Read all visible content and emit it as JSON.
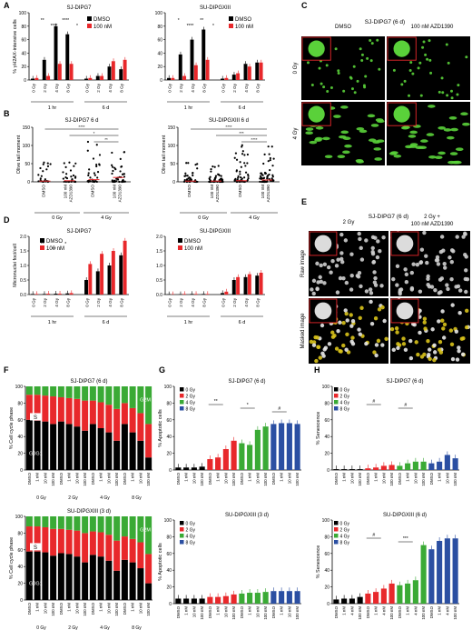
{
  "panels": {
    "A": "A",
    "B": "B",
    "C": "C",
    "D": "D",
    "E": "E",
    "F": "F",
    "G": "G",
    "H": "H"
  },
  "colors": {
    "black": "#000000",
    "red": "#e8282b",
    "green": "#3aaa35",
    "blue": "#2b4fa2",
    "white": "#ffffff"
  },
  "legend": {
    "dmso": "DMSO",
    "nm100": "100 nM",
    "gy0": "0 Gy",
    "gy2": "2 Gy",
    "gy4": "4 Gy",
    "gy8": "8 Gy"
  },
  "chart_data": [
    {
      "panel": "A",
      "type": "bar",
      "title": "SJ-DIPG7",
      "ylabel": "% γH2AX-intensive cells",
      "ylim": [
        0,
        100
      ],
      "yticks": [
        "0",
        "20",
        "40",
        "60",
        "80",
        "100"
      ],
      "categories": [
        "0 Gy",
        "2 Gy",
        "4 Gy",
        "8 Gy",
        "0 Gy",
        "2 Gy",
        "4 Gy",
        "8 Gy"
      ],
      "groups": [
        "1 hr",
        "6 d"
      ],
      "series": [
        {
          "name": "DMSO",
          "values": [
            2,
            30,
            80,
            68,
            2,
            6,
            20,
            16
          ]
        },
        {
          "name": "100 nM",
          "values": [
            3,
            6,
            24,
            24,
            3,
            6,
            28,
            30
          ]
        }
      ],
      "sig": [
        "**",
        "****",
        "****",
        "*"
      ]
    },
    {
      "panel": "A",
      "type": "bar",
      "title": "SU-DIPGXIII",
      "ylabel": "",
      "ylim": [
        0,
        100
      ],
      "yticks": [
        "0",
        "20",
        "40",
        "60",
        "80",
        "100"
      ],
      "categories": [
        "0 Gy",
        "2 Gy",
        "4 Gy",
        "8 Gy",
        "0 Gy",
        "2 Gy",
        "4 Gy",
        "8 Gy"
      ],
      "groups": [
        "1 hr",
        "6 d"
      ],
      "series": [
        {
          "name": "DMSO",
          "values": [
            3,
            38,
            60,
            75,
            2,
            8,
            24,
            26
          ]
        },
        {
          "name": "100 nM",
          "values": [
            3,
            6,
            22,
            30,
            3,
            10,
            20,
            26
          ]
        }
      ],
      "sig": [
        "*",
        "****",
        "**",
        "*"
      ]
    },
    {
      "panel": "B",
      "type": "scatter",
      "title": "SJ-DIPG7 6 d",
      "ylabel": "Olive tail moment",
      "ylim": [
        0,
        150
      ],
      "yticks": [
        "0",
        "50",
        "100",
        "150"
      ],
      "categories": [
        "DMSO",
        "100 nM AZD1390",
        "DMSO",
        "100 nM AZD1390"
      ],
      "groups": [
        "0 Gy",
        "4 Gy"
      ],
      "medians": [
        2,
        3,
        6,
        12
      ],
      "sig": [
        "****",
        "*",
        "**"
      ]
    },
    {
      "panel": "B",
      "type": "scatter",
      "title": "SU-DIPGXIII 6 d",
      "ylabel": "Olive tail moment",
      "ylim": [
        0,
        150
      ],
      "yticks": [
        "0",
        "50",
        "100",
        "150"
      ],
      "categories": [
        "DMSO",
        "100 nM AZD1390",
        "DMSO",
        "100 nM AZD1390"
      ],
      "groups": [
        "0 Gy",
        "4 Gy"
      ],
      "medians": [
        2,
        2,
        3,
        5
      ],
      "sig": [
        "****",
        "***",
        "****"
      ]
    },
    {
      "panel": "D",
      "type": "bar",
      "title": "SJ-DIPG7",
      "ylabel": "Micronuclei foci/cell",
      "ylim": [
        0,
        2.0
      ],
      "yticks": [
        "0.0",
        "0.5",
        "1.0",
        "1.5",
        "2.0"
      ],
      "categories": [
        "0 Gy",
        "2 Gy",
        "4 Gy",
        "8 Gy",
        "0 Gy",
        "2 Gy",
        "4 Gy",
        "8 Gy"
      ],
      "groups": [
        "1 hr",
        "6 d"
      ],
      "series": [
        {
          "name": "DMSO",
          "values": [
            0.02,
            0.02,
            0.03,
            0.04,
            0.5,
            0.8,
            1.0,
            1.35
          ]
        },
        {
          "name": "100 nM",
          "values": [
            0.02,
            0.03,
            0.03,
            0.05,
            1.05,
            1.4,
            1.5,
            1.85
          ]
        }
      ],
      "sig": [
        "**",
        "**",
        "*"
      ]
    },
    {
      "panel": "D",
      "type": "bar",
      "title": "SU-DIPGXIII",
      "ylabel": "",
      "ylim": [
        0,
        2.0
      ],
      "yticks": [
        "0.0",
        "0.5",
        "1.0",
        "1.5",
        "2.0"
      ],
      "categories": [
        "0 Gy",
        "2 Gy",
        "4 Gy",
        "8 Gy",
        "0 Gy",
        "2 Gy",
        "4 Gy",
        "8 Gy"
      ],
      "groups": [
        "1 hr",
        "6 d"
      ],
      "series": [
        {
          "name": "DMSO",
          "values": [
            0.01,
            0.01,
            0.02,
            0.02,
            0.05,
            0.5,
            0.6,
            0.65
          ]
        },
        {
          "name": "100 nM",
          "values": [
            0.01,
            0.02,
            0.02,
            0.02,
            0.1,
            0.6,
            0.7,
            0.75
          ]
        }
      ],
      "sig": []
    },
    {
      "panel": "F",
      "type": "bar",
      "title": "SJ-DIPG7 (6 d)",
      "ylabel": "% Cell cycle phase",
      "ylim": [
        0,
        100
      ],
      "yticks": [
        "0",
        "20",
        "40",
        "60",
        "80",
        "100"
      ],
      "categories": [
        "DMSO",
        "1 nM",
        "10 nM",
        "100 nM"
      ],
      "groups": [
        "0 Gy",
        "2 Gy",
        "4 Gy",
        "8 Gy"
      ],
      "stack_labels": [
        "G0G1",
        "S",
        "G2M"
      ],
      "g1": [
        60,
        59,
        58,
        55,
        58,
        55,
        52,
        47,
        55,
        50,
        45,
        35,
        55,
        45,
        35,
        15
      ],
      "s": [
        30,
        31,
        31,
        33,
        29,
        31,
        33,
        36,
        28,
        31,
        33,
        38,
        25,
        29,
        33,
        40
      ]
    },
    {
      "panel": "F",
      "type": "bar",
      "title": "SU-DIPGXIII (3 d)",
      "ylabel": "% Cell cycle phase",
      "ylim": [
        0,
        100
      ],
      "yticks": [
        "0",
        "20",
        "40",
        "60",
        "80",
        "100"
      ],
      "categories": [
        "DMSO",
        "1 nM",
        "10 nM",
        "100 nM"
      ],
      "groups": [
        "0 Gy",
        "2 Gy",
        "4 Gy",
        "8 Gy"
      ],
      "stack_labels": [
        "G0G1",
        "S",
        "G2M"
      ],
      "g1": [
        58,
        58,
        57,
        53,
        56,
        55,
        52,
        45,
        54,
        52,
        47,
        35,
        48,
        45,
        38,
        20
      ],
      "s": [
        30,
        30,
        30,
        32,
        29,
        29,
        31,
        35,
        28,
        29,
        31,
        36,
        28,
        28,
        31,
        35
      ]
    },
    {
      "panel": "G",
      "type": "bar",
      "title": "SJ-DIPG7 (6 d)",
      "ylabel": "% Apoptotic cells",
      "ylim": [
        0,
        100
      ],
      "yticks": [
        "0",
        "20",
        "40",
        "60",
        "80",
        "100"
      ],
      "categories": [
        "DMSO",
        "1 nM",
        "10 nM",
        "100 nM"
      ],
      "groups": [
        "0 Gy",
        "2 Gy",
        "4 Gy",
        "8 Gy"
      ],
      "series": [
        {
          "name": "0 Gy",
          "values": [
            3,
            3,
            3,
            4
          ]
        },
        {
          "name": "2 Gy",
          "values": [
            13,
            15,
            25,
            35
          ]
        },
        {
          "name": "4 Gy",
          "values": [
            32,
            30,
            48,
            52
          ]
        },
        {
          "name": "8 Gy",
          "values": [
            55,
            56,
            56,
            55
          ]
        }
      ],
      "sig": [
        "**",
        "*",
        "#"
      ]
    },
    {
      "panel": "G",
      "type": "bar",
      "title": "SU-DIPGXIII (3 d)",
      "ylabel": "% Apoptotic cells",
      "ylim": [
        0,
        100
      ],
      "yticks": [
        "0",
        "20",
        "40",
        "60",
        "80",
        "100"
      ],
      "categories": [
        "DMSO",
        "1 nM",
        "10 nM",
        "100 nM"
      ],
      "groups": [
        "0 Gy",
        "2 Gy",
        "4 Gy",
        "8 Gy"
      ],
      "series": [
        {
          "name": "0 Gy",
          "values": [
            6,
            6,
            6,
            6
          ]
        },
        {
          "name": "2 Gy",
          "values": [
            8,
            8,
            9,
            11
          ]
        },
        {
          "name": "4 Gy",
          "values": [
            12,
            13,
            13,
            14
          ]
        },
        {
          "name": "8 Gy",
          "values": [
            15,
            15,
            15,
            15
          ]
        }
      ],
      "sig": []
    },
    {
      "panel": "H",
      "type": "bar",
      "title": "SJ-DIPG7 (6 d)",
      "ylabel": "% Senescence",
      "ylim": [
        0,
        100
      ],
      "yticks": [
        "0",
        "20",
        "40",
        "60",
        "80",
        "100"
      ],
      "categories": [
        "DMSO",
        "1 nM",
        "10 nM",
        "100 nM"
      ],
      "groups": [
        "0 Gy",
        "2 Gy",
        "4 Gy",
        "8 Gy"
      ],
      "series": [
        {
          "name": "0 Gy",
          "values": [
            1,
            1,
            1,
            1
          ]
        },
        {
          "name": "2 Gy",
          "values": [
            2,
            3,
            5,
            6
          ]
        },
        {
          "name": "4 Gy",
          "values": [
            5,
            8,
            10,
            10
          ]
        },
        {
          "name": "8 Gy",
          "values": [
            8,
            10,
            18,
            14
          ]
        }
      ],
      "sig": [
        "#",
        "#"
      ]
    },
    {
      "panel": "H",
      "type": "bar",
      "title": "SU-DIPGXIII (6 d)",
      "ylabel": "% Senescence",
      "ylim": [
        0,
        100
      ],
      "yticks": [
        "0",
        "20",
        "40",
        "60",
        "80",
        "100"
      ],
      "categories": [
        "DMSO",
        "1 nM",
        "4 nM",
        "100 nM"
      ],
      "groups": [
        "0 Gy",
        "2 Gy",
        "4 Gy",
        "8 Gy"
      ],
      "series": [
        {
          "name": "0 Gy",
          "values": [
            5,
            6,
            6,
            8
          ]
        },
        {
          "name": "2 Gy",
          "values": [
            12,
            14,
            18,
            24
          ]
        },
        {
          "name": "4 Gy",
          "values": [
            22,
            24,
            28,
            70
          ]
        },
        {
          "name": "8 Gy",
          "values": [
            65,
            75,
            78,
            78
          ]
        }
      ],
      "sig": [
        "#",
        "***"
      ]
    }
  ],
  "images": {
    "C": {
      "title": "SJ-DIPG7 (6 d)",
      "cols": [
        "DMSO",
        "100 nM AZD1390"
      ],
      "rows": [
        "0 Gy",
        "4 Gy"
      ]
    },
    "E": {
      "title": "SJ-DIPG7 (6 d)",
      "cols": [
        "2 Gy",
        "2 Gy +",
        "100 nM AZD1390"
      ],
      "rows": [
        "Raw image",
        "Masked image"
      ]
    }
  }
}
